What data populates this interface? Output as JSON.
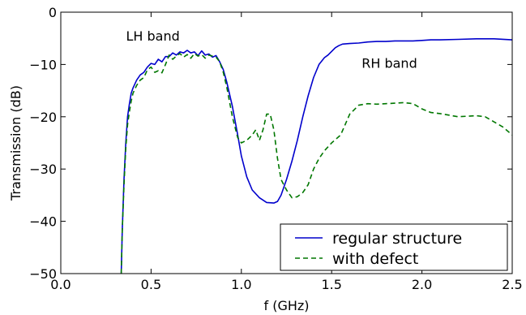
{
  "chart_data": {
    "type": "line",
    "xlabel": "f (GHz)",
    "ylabel": "Transmission (dB)",
    "xlim": [
      0.0,
      2.5
    ],
    "ylim": [
      -50,
      0
    ],
    "xticks": [
      "0.0",
      "0.5",
      "1.0",
      "1.5",
      "2.0",
      "2.5"
    ],
    "yticks": [
      "0",
      "−10",
      "−20",
      "−30",
      "−40",
      "−50"
    ],
    "grid": false,
    "legend_position": "bottom-right",
    "annotations": [
      {
        "text": "LH band",
        "x": 0.51,
        "y": -4.5
      },
      {
        "text": "RH band",
        "x": 1.82,
        "y": -9.7
      }
    ],
    "series": [
      {
        "name": "regular structure",
        "style": "solid",
        "color": "#0000cc",
        "x": [
          0.335,
          0.34,
          0.35,
          0.36,
          0.37,
          0.38,
          0.39,
          0.4,
          0.42,
          0.44,
          0.46,
          0.48,
          0.5,
          0.52,
          0.54,
          0.56,
          0.58,
          0.6,
          0.62,
          0.64,
          0.66,
          0.68,
          0.7,
          0.72,
          0.74,
          0.76,
          0.78,
          0.8,
          0.82,
          0.84,
          0.86,
          0.88,
          0.9,
          0.92,
          0.95,
          0.98,
          1.0,
          1.03,
          1.06,
          1.1,
          1.14,
          1.18,
          1.2,
          1.22,
          1.25,
          1.28,
          1.31,
          1.34,
          1.37,
          1.4,
          1.43,
          1.46,
          1.48,
          1.5,
          1.52,
          1.54,
          1.56,
          1.6,
          1.65,
          1.7,
          1.75,
          1.8,
          1.85,
          1.9,
          1.95,
          2.0,
          2.05,
          2.1,
          2.2,
          2.3,
          2.4,
          2.5
        ],
        "y": [
          -50,
          -42,
          -32,
          -25,
          -20,
          -17.5,
          -15.5,
          -14.5,
          -13,
          -12,
          -11.5,
          -10.5,
          -9.8,
          -10,
          -9,
          -9.5,
          -8.5,
          -8.5,
          -7.8,
          -8.2,
          -7.6,
          -7.8,
          -7.3,
          -7.8,
          -7.6,
          -8.3,
          -7.4,
          -8.2,
          -8.0,
          -8.6,
          -8.3,
          -9.5,
          -11,
          -13.5,
          -18,
          -23.5,
          -27.5,
          -31.5,
          -34,
          -35.5,
          -36.4,
          -36.5,
          -36.2,
          -35,
          -32,
          -28.5,
          -24.5,
          -20,
          -16,
          -12.5,
          -10,
          -8.7,
          -8.2,
          -7.5,
          -6.8,
          -6.4,
          -6.1,
          -6.0,
          -5.9,
          -5.7,
          -5.6,
          -5.6,
          -5.5,
          -5.5,
          -5.5,
          -5.4,
          -5.3,
          -5.3,
          -5.2,
          -5.1,
          -5.1,
          -5.3
        ]
      },
      {
        "name": "with defect",
        "style": "dashed",
        "color": "#007700",
        "x": [
          0.335,
          0.34,
          0.35,
          0.36,
          0.37,
          0.38,
          0.39,
          0.4,
          0.42,
          0.44,
          0.46,
          0.48,
          0.5,
          0.52,
          0.54,
          0.56,
          0.58,
          0.6,
          0.62,
          0.64,
          0.66,
          0.68,
          0.7,
          0.72,
          0.74,
          0.76,
          0.78,
          0.8,
          0.82,
          0.84,
          0.86,
          0.88,
          0.9,
          0.92,
          0.95,
          0.98,
          1.0,
          1.03,
          1.06,
          1.08,
          1.1,
          1.12,
          1.14,
          1.16,
          1.18,
          1.2,
          1.22,
          1.25,
          1.28,
          1.31,
          1.34,
          1.37,
          1.4,
          1.43,
          1.46,
          1.5,
          1.55,
          1.6,
          1.65,
          1.7,
          1.75,
          1.8,
          1.85,
          1.9,
          1.95,
          2.0,
          2.05,
          2.1,
          2.2,
          2.3,
          2.35,
          2.4,
          2.45,
          2.5
        ],
        "y": [
          -50,
          -42,
          -33,
          -26,
          -21.5,
          -19,
          -17,
          -15.5,
          -14,
          -13,
          -12.5,
          -11,
          -10.5,
          -11.5,
          -11.2,
          -11.6,
          -10,
          -8.2,
          -9,
          -8.4,
          -7.9,
          -8.6,
          -8.1,
          -8.8,
          -7.9,
          -8.4,
          -8.1,
          -8.8,
          -8.2,
          -8.4,
          -8.6,
          -9.5,
          -11.5,
          -14.5,
          -20,
          -24,
          -25,
          -24.5,
          -23.5,
          -22.5,
          -24.5,
          -22.5,
          -19.5,
          -19.5,
          -22.5,
          -28,
          -32,
          -34,
          -35.5,
          -35.3,
          -34.5,
          -33,
          -30,
          -28,
          -26.5,
          -25,
          -23.5,
          -19.5,
          -17.8,
          -17.5,
          -17.6,
          -17.5,
          -17.4,
          -17.3,
          -17.5,
          -18.5,
          -19.2,
          -19.4,
          -20,
          -19.8,
          -20,
          -21,
          -22,
          -23.5
        ]
      }
    ]
  }
}
